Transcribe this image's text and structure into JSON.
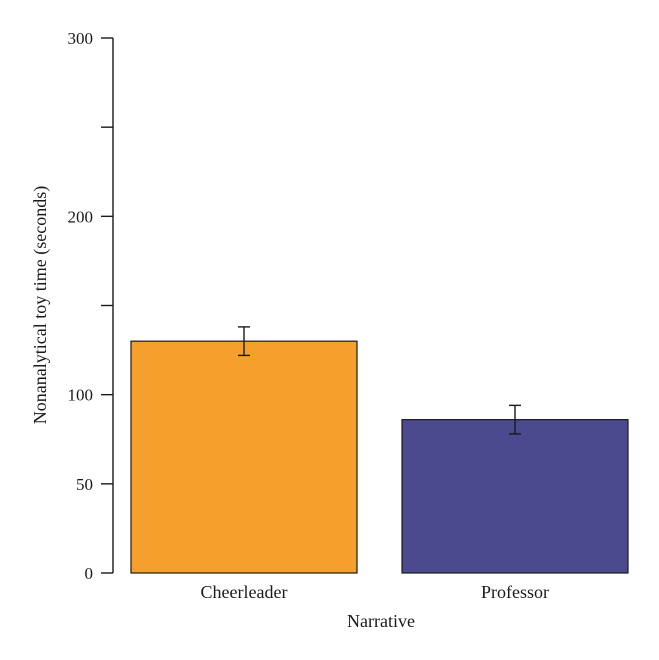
{
  "chart_data": {
    "type": "bar",
    "categories": [
      "Cheerleader",
      "Professor"
    ],
    "values": [
      130,
      86
    ],
    "error": [
      {
        "low": 122,
        "high": 138
      },
      {
        "low": 78,
        "high": 94
      }
    ],
    "colors": [
      "#f59f2c",
      "#4b4a8e"
    ],
    "xlabel": "Narrative",
    "ylabel": "Nonanalytical toy time (seconds)",
    "ylim": [
      0,
      300
    ],
    "yticks": [
      0,
      50,
      100,
      150,
      200,
      250,
      300
    ],
    "yticklabels": [
      "0",
      "50",
      "100",
      "",
      "200",
      "",
      "300"
    ],
    "grid": false
  }
}
